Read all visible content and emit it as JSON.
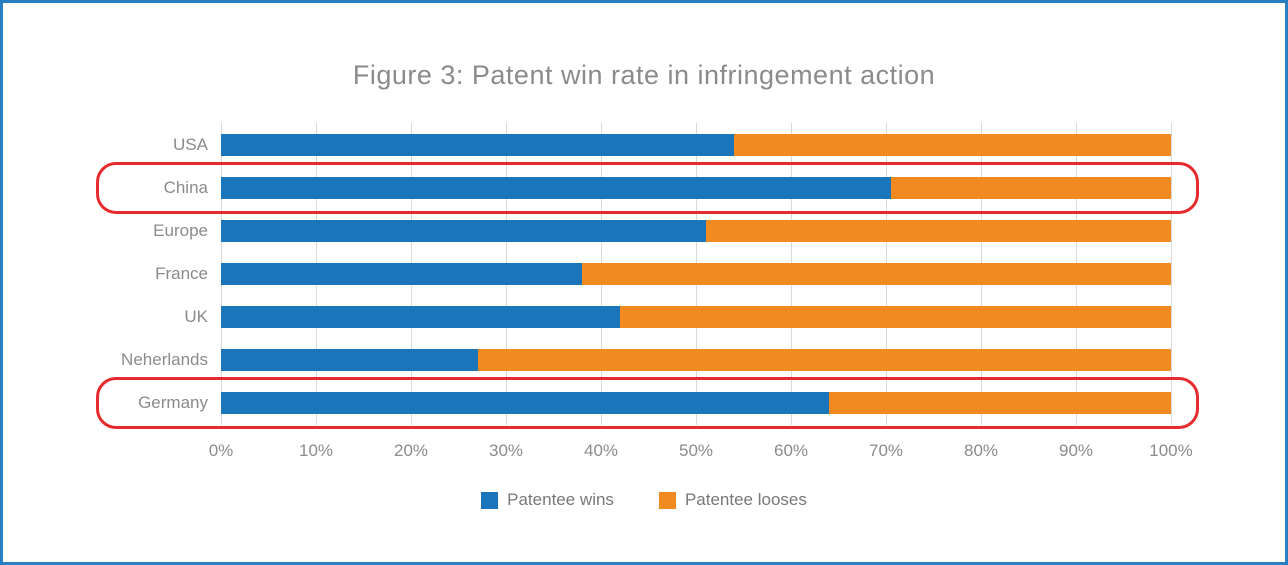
{
  "title": "Figure 3: Patent win rate in infringement action",
  "frame": {
    "border_color": "#2a7fc2",
    "background": "#ffffff"
  },
  "chart_data": {
    "type": "bar",
    "orientation": "horizontal-stacked",
    "title": "Figure 3: Patent win rate in infringement action",
    "categories": [
      "USA",
      "China",
      "Europe",
      "France",
      "UK",
      "Neherlands",
      "Germany"
    ],
    "series": [
      {
        "name": "Patentee wins",
        "color": "#1a75bb",
        "values": [
          54,
          70.5,
          51,
          38,
          42,
          27,
          64
        ]
      },
      {
        "name": "Patentee looses",
        "color": "#f18b21",
        "values": [
          46,
          29.5,
          49,
          62,
          58,
          73,
          36
        ]
      }
    ],
    "x_ticks": [
      "0%",
      "10%",
      "20%",
      "30%",
      "40%",
      "50%",
      "60%",
      "70%",
      "80%",
      "90%",
      "100%"
    ],
    "xlim": [
      0,
      100
    ],
    "grid": "vertical",
    "gridline_color": "#d9d9d9",
    "legend_position": "bottom",
    "text_color": "#8a8b8e",
    "highlight_color": "#e62a2e",
    "highlighted_categories": [
      "China",
      "Germany"
    ]
  }
}
